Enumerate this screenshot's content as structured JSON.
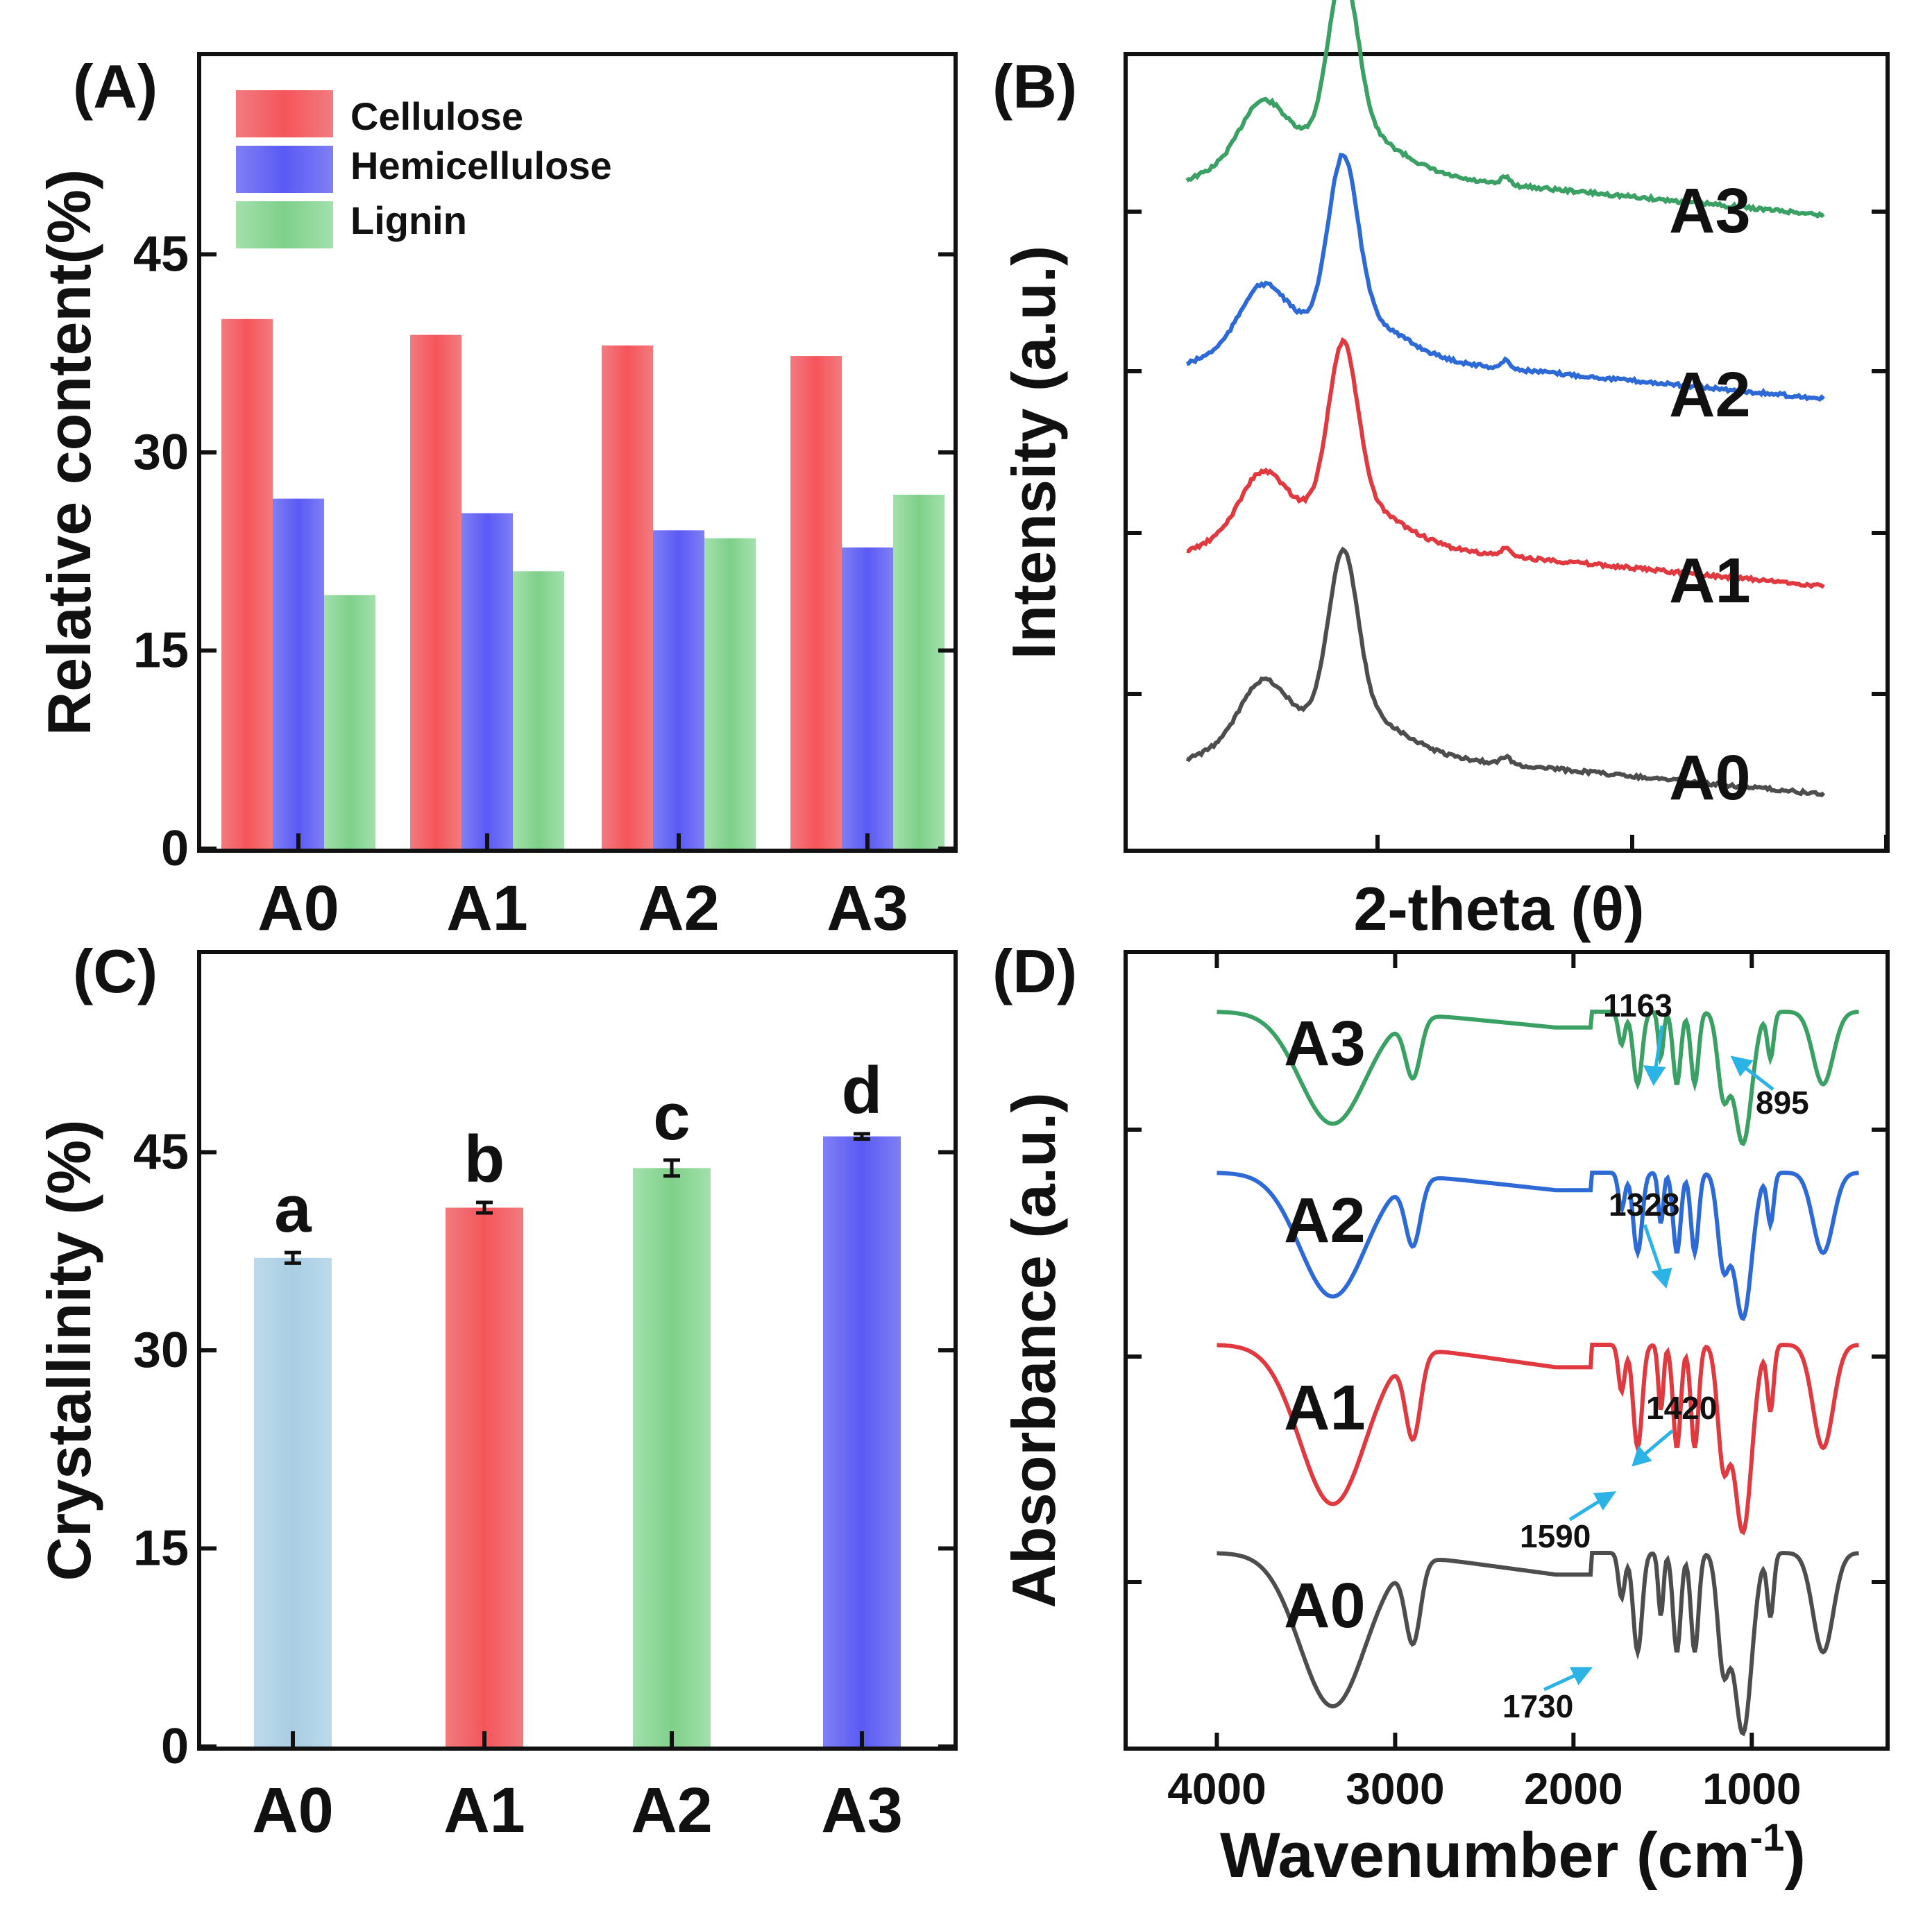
{
  "panels": {
    "A": {
      "label": "(A)",
      "ylabel": "Relative content(%)",
      "xlabels": [
        "A0",
        "A1",
        "A2",
        "A3"
      ],
      "yticks": [
        "0",
        "15",
        "30",
        "45"
      ],
      "legend": [
        {
          "name": "Cellulose",
          "color": "#f4555a"
        },
        {
          "name": "Hemicellulose",
          "color": "#5a5af5"
        },
        {
          "name": "Lignin",
          "color": "#7fd08a"
        }
      ]
    },
    "B": {
      "label": "(B)",
      "ylabel": "Intensity (a.u.)",
      "xlabel": "2-theta (θ)",
      "curve_labels": [
        "A3",
        "A2",
        "A1",
        "A0"
      ]
    },
    "C": {
      "label": "(C)",
      "ylabel": "Crystallinity (%)",
      "xlabels": [
        "A0",
        "A1",
        "A2",
        "A3"
      ],
      "yticks": [
        "0",
        "15",
        "30",
        "45"
      ],
      "letters": [
        "a",
        "b",
        "c",
        "d"
      ]
    },
    "D": {
      "label": "(D)",
      "ylabel": "Absorbance (a.u.)",
      "xlabel": "Wavenumber (cm",
      "xlabel_sup": "-1",
      "xlabel_close": ")",
      "xticks": [
        "4000",
        "3000",
        "2000",
        "1000"
      ],
      "curve_labels": [
        "A3",
        "A2",
        "A1",
        "A0"
      ],
      "annotations": [
        "1163",
        "895",
        "1328",
        "1420",
        "1590",
        "1730"
      ]
    }
  },
  "chart_data": [
    {
      "type": "bar",
      "panel": "A",
      "categories": [
        "A0",
        "A1",
        "A2",
        "A3"
      ],
      "series": [
        {
          "name": "Cellulose",
          "values": [
            40.1,
            38.9,
            38.1,
            37.3
          ],
          "color": "#f4555a"
        },
        {
          "name": "Hemicellulose",
          "values": [
            26.5,
            25.4,
            24.1,
            22.8
          ],
          "color": "#5a5af5"
        },
        {
          "name": "Lignin",
          "values": [
            19.2,
            21.0,
            23.5,
            26.8
          ],
          "color": "#7fd08a"
        }
      ],
      "ylabel": "Relative content(%)",
      "ylim": [
        0,
        60
      ],
      "legend": "top-left"
    },
    {
      "type": "line",
      "panel": "B",
      "xlabel": "2-theta (θ)",
      "ylabel": "Intensity (a.u.)",
      "series": [
        {
          "name": "A3",
          "color": "#3aa064"
        },
        {
          "name": "A2",
          "color": "#2d6ad6"
        },
        {
          "name": "A1",
          "color": "#e0393f"
        },
        {
          "name": "A0",
          "color": "#4d4d4d"
        }
      ]
    },
    {
      "type": "bar",
      "panel": "C",
      "categories": [
        "A0",
        "A1",
        "A2",
        "A3"
      ],
      "values": [
        37.0,
        40.8,
        43.8,
        46.2
      ],
      "errors": [
        0.4,
        0.4,
        0.6,
        0.2
      ],
      "letters": [
        "a",
        "b",
        "c",
        "d"
      ],
      "colors": [
        "#aacde3",
        "#f4555a",
        "#7fd08a",
        "#5a5af5"
      ],
      "ylabel": "Crystallinity (%)",
      "ylim": [
        0,
        60
      ]
    },
    {
      "type": "line",
      "panel": "D",
      "xlabel": "Wavenumber (cm-1)",
      "ylabel": "Absorbance (a.u.)",
      "xlim": [
        4500,
        250
      ],
      "series": [
        {
          "name": "A3",
          "color": "#3aa064"
        },
        {
          "name": "A2",
          "color": "#2d6ad6"
        },
        {
          "name": "A1",
          "color": "#e0393f"
        },
        {
          "name": "A0",
          "color": "#4d4d4d"
        }
      ],
      "annotations": [
        {
          "text": "1163",
          "x": 1163
        },
        {
          "text": "895",
          "x": 895
        },
        {
          "text": "1328",
          "x": 1328
        },
        {
          "text": "1420",
          "x": 1420
        },
        {
          "text": "1590",
          "x": 1590
        },
        {
          "text": "1730",
          "x": 1730
        }
      ]
    }
  ]
}
